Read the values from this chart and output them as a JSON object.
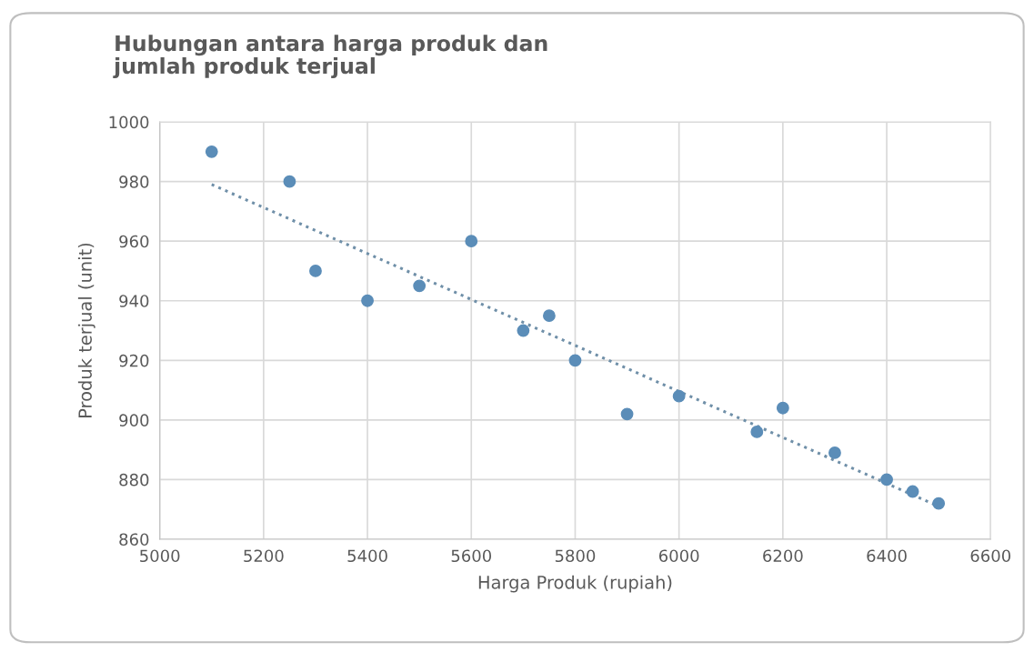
{
  "chart_data": {
    "type": "scatter",
    "title": "Hubungan antara harga produk dan\njumlah produk terjual",
    "xlabel": "Harga Produk (rupiah)",
    "ylabel": "Produk terjual (unit)",
    "series": [
      {
        "color": "#5b8db8",
        "marker": "circle",
        "x": [
          5100,
          5250,
          5300,
          5400,
          5500,
          5600,
          5700,
          5750,
          5800,
          5900,
          6000,
          6150,
          6200,
          6300,
          6400,
          6450,
          6500
        ],
        "values": [
          990,
          980,
          950,
          940,
          945,
          960,
          930,
          935,
          920,
          902,
          908,
          896,
          904,
          889,
          880,
          876,
          872
        ]
      },
      {
        "type": "line",
        "color": "#6f8fa8",
        "line_style": "dotted",
        "marker": "none",
        "x": [
          5100,
          6500
        ],
        "values": [
          979,
          871
        ]
      }
    ],
    "xlim": [
      5000,
      6600
    ],
    "xticks": [
      5000,
      5200,
      5400,
      5600,
      5800,
      6000,
      6200,
      6400,
      6600
    ],
    "ylim": [
      860,
      1000
    ],
    "yticks": [
      860,
      880,
      900,
      920,
      940,
      960,
      980,
      1000
    ],
    "grid": true,
    "legend": false
  }
}
